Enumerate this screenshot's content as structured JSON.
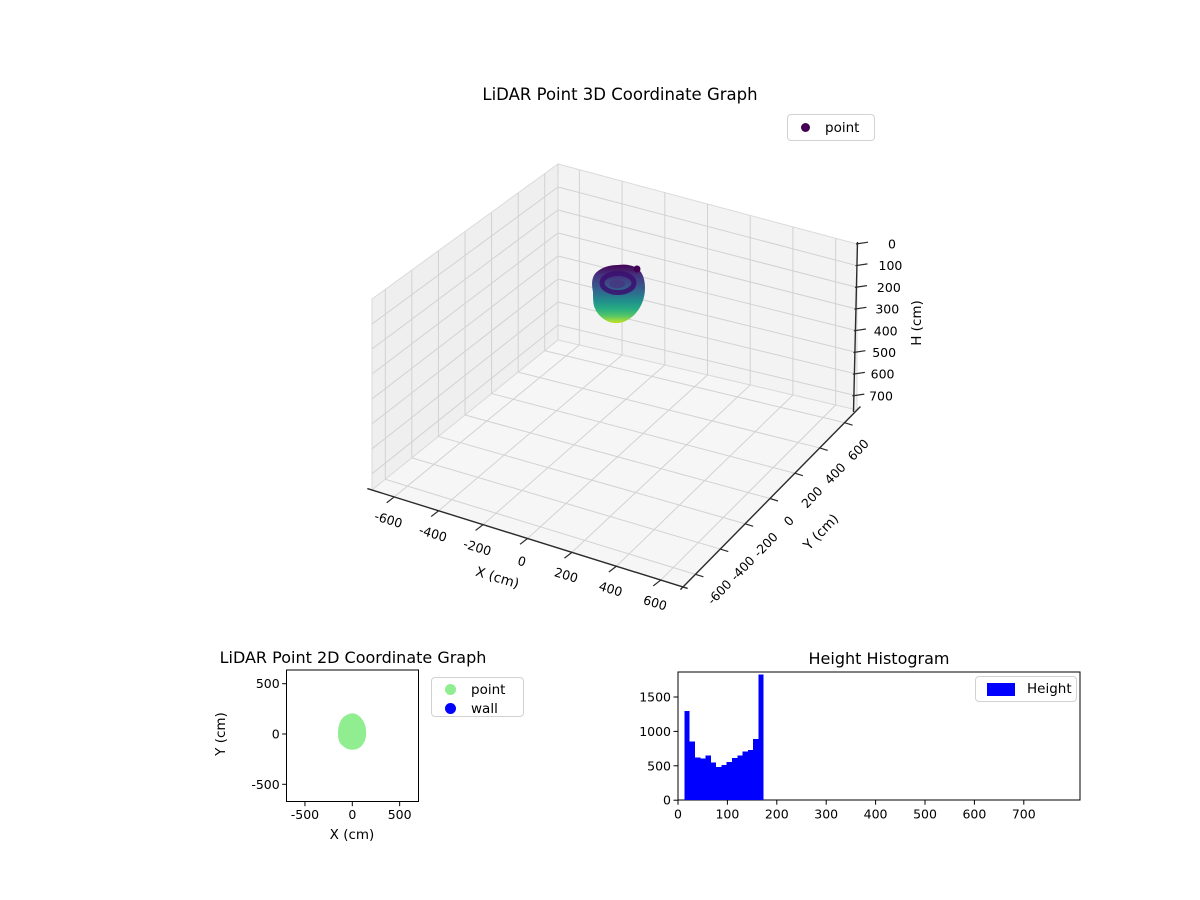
{
  "figure": {
    "background": "#ffffff"
  },
  "chart_data": [
    {
      "id": "lidar3d",
      "type": "scatter",
      "subtype": "scatter3d",
      "title": "LiDAR Point 3D Coordinate Graph",
      "xlabel": "X (cm)",
      "ylabel": "Y (cm)",
      "zlabel": "H (cm)",
      "xticks": [
        -600,
        -400,
        -200,
        0,
        200,
        400,
        600
      ],
      "yticks": [
        -600,
        -400,
        -200,
        0,
        200,
        400,
        600
      ],
      "zticks": [
        0,
        100,
        200,
        300,
        400,
        500,
        600,
        700
      ],
      "xlim": [
        -700,
        700
      ],
      "ylim": [
        -700,
        700
      ],
      "zlim": [
        0,
        765
      ],
      "zaxis_inverted": true,
      "grid": true,
      "legend": {
        "position": "upper right",
        "entries": [
          {
            "label": "point",
            "color": "#440154",
            "marker": "dot"
          }
        ]
      },
      "cloud": {
        "description": "roughly spherical LiDAR point cloud centered near x=0,y=0",
        "x_center": 0,
        "y_center": 0,
        "h_range": [
          13,
          175
        ],
        "radius_cm": 150,
        "colormap": "viridis",
        "colormap_stops": [
          "#440154",
          "#46327e",
          "#3b528b",
          "#2c728e",
          "#21918c",
          "#27ad81",
          "#52c569",
          "#a0da39",
          "#c2df23"
        ]
      }
    },
    {
      "id": "lidar2d",
      "type": "scatter",
      "title": "LiDAR Point 2D Coordinate Graph",
      "xlabel": "X (cm)",
      "ylabel": "Y (cm)",
      "xticks": [
        -500,
        0,
        500
      ],
      "yticks": [
        -500,
        0,
        500
      ],
      "xlim": [
        -700,
        700
      ],
      "ylim": [
        -660,
        660
      ],
      "grid": false,
      "legend": {
        "position": "right of axes",
        "entries": [
          {
            "label": "point",
            "color": "#90ee90",
            "marker": "dot"
          },
          {
            "label": "wall",
            "color": "#0000ff",
            "marker": "dot"
          }
        ]
      },
      "cloud": {
        "description": "top-down footprint of the point cloud",
        "x_center": -5,
        "y_center": 5,
        "radius_cm": 150,
        "color": "#90ee90",
        "wall_points_visible": false
      }
    },
    {
      "id": "height_histogram",
      "type": "bar",
      "subtype": "histogram",
      "title": "Height Histogram",
      "xlabel": "",
      "ylabel": "",
      "xticks": [
        0,
        100,
        200,
        300,
        400,
        500,
        600,
        700
      ],
      "yticks": [
        0,
        500,
        1000,
        1500
      ],
      "xlim": [
        -12,
        815
      ],
      "ylim": [
        0,
        1862
      ],
      "bin_start": 13,
      "bin_width": 10.7,
      "counts": [
        1300,
        855,
        620,
        605,
        650,
        545,
        480,
        510,
        555,
        610,
        650,
        705,
        730,
        890,
        1830
      ],
      "bar_color": "#0000ff",
      "grid": false,
      "legend": {
        "position": "upper right",
        "entries": [
          {
            "label": "Height",
            "color": "#0000ff",
            "marker": "patch"
          }
        ]
      }
    }
  ]
}
